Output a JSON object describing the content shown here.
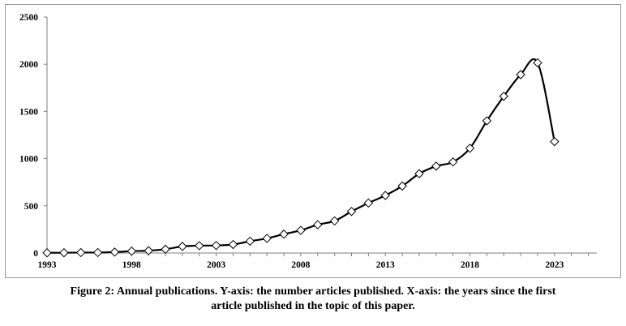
{
  "caption": {
    "line1": "Figure 2: Annual publications. Y-axis: the number articles published. X-axis: the years since the first",
    "line2": "article published in the topic of this paper."
  },
  "chart_data": {
    "type": "line",
    "title": "",
    "xlabel": "",
    "ylabel": "",
    "x": [
      1993,
      1994,
      1995,
      1996,
      1997,
      1998,
      1999,
      2000,
      2001,
      2002,
      2003,
      2004,
      2005,
      2006,
      2007,
      2008,
      2009,
      2010,
      2011,
      2012,
      2013,
      2014,
      2015,
      2016,
      2017,
      2018,
      2019,
      2020,
      2021,
      2022,
      2023
    ],
    "series": [
      {
        "values": [
          2,
          3,
          5,
          5,
          10,
          20,
          25,
          40,
          70,
          78,
          80,
          90,
          125,
          155,
          200,
          240,
          300,
          340,
          440,
          530,
          610,
          710,
          840,
          920,
          965,
          1110,
          1400,
          1660,
          1890,
          2015,
          1180
        ],
        "color": "#000000",
        "marker": "diamond",
        "smooth": true
      }
    ],
    "xlim": [
      1993,
      2025.5
    ],
    "ylim": [
      0,
      2500
    ],
    "xticks": [
      "1993",
      "1998",
      "2003",
      "2008",
      "2013",
      "2018",
      "2023"
    ],
    "yticks": [
      "0",
      "500",
      "1000",
      "1500",
      "2000",
      "2500"
    ],
    "grid": false,
    "legend": "none"
  }
}
